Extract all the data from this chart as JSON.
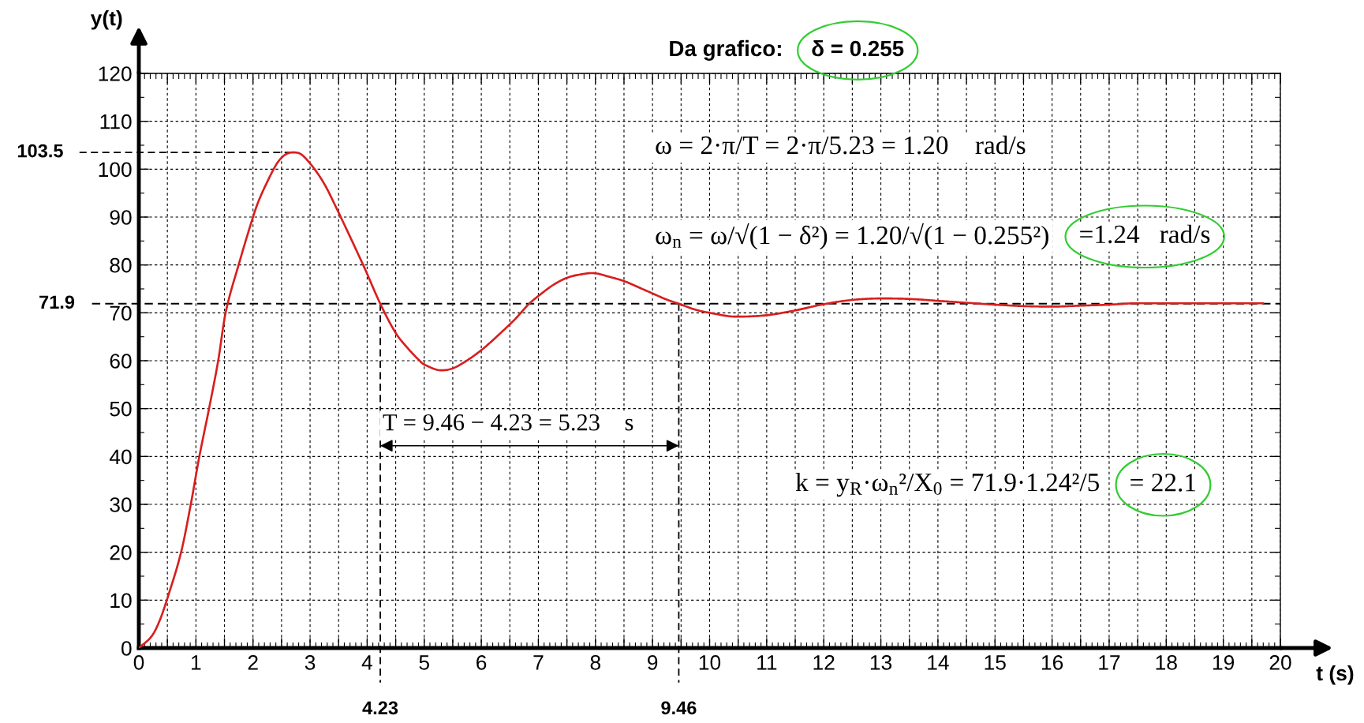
{
  "chart_data": {
    "type": "line",
    "xlabel": "t (s)",
    "ylabel": "y(t)",
    "x": [
      0,
      0.22,
      0.35,
      0.49,
      0.74,
      0.91,
      1.06,
      1.23,
      1.39,
      1.52,
      1.77,
      2.0,
      2.1,
      2.26,
      2.42,
      2.56,
      2.7,
      2.83,
      3.0,
      3.2,
      3.36,
      3.93,
      4.23,
      4.5,
      4.72,
      4.91,
      5.0,
      5.3,
      5.5,
      5.73,
      6.0,
      6.24,
      6.5,
      6.61,
      6.83,
      7.02,
      7.27,
      7.52,
      7.78,
      7.94,
      8.28,
      8.53,
      8.78,
      9.01,
      9.24,
      9.46,
      9.74,
      10.0,
      10.47,
      11.0,
      11.5,
      12.0,
      12.5,
      13.0,
      13.5,
      14.0,
      14.5,
      15.0,
      15.5,
      16.0,
      16.5,
      17.0,
      17.5,
      18.0,
      19.0,
      19.7
    ],
    "values": [
      0,
      2.4,
      5.3,
      10,
      20,
      30,
      40,
      50,
      60,
      70,
      80.9,
      90,
      93.4,
      97.6,
      101.2,
      103.0,
      103.5,
      103.2,
      101.2,
      97.9,
      94.4,
      80,
      71.9,
      65.8,
      62.5,
      60.1,
      59.2,
      58.0,
      58.4,
      59.9,
      62.2,
      64.7,
      67.6,
      68.9,
      71.8,
      73.7,
      75.9,
      77.4,
      78.1,
      78.3,
      77.4,
      76.5,
      75.2,
      74.0,
      72.8,
      71.9,
      70.7,
      70.0,
      69.2,
      69.5,
      70.5,
      71.8,
      72.7,
      73.0,
      72.9,
      72.5,
      72.1,
      71.7,
      71.4,
      71.3,
      71.5,
      71.7,
      72.0,
      72.0,
      72.0,
      72.0
    ],
    "color": "#d81e1e",
    "xlim": [
      0,
      20
    ],
    "ylim": [
      0,
      120
    ],
    "xticks": [
      0,
      {
        "value": 0.5,
        "label": null
      },
      1,
      {
        "value": 1.5,
        "label": null
      },
      2,
      {
        "value": 2.5,
        "label": null
      },
      3,
      {
        "value": 3.5,
        "label": null
      },
      4,
      {
        "value": 4.5,
        "label": null
      },
      5,
      {
        "value": 5.5,
        "label": null
      },
      6,
      {
        "value": 6.5,
        "label": null
      },
      7,
      {
        "value": 7.5,
        "label": null
      },
      8,
      {
        "value": 8.5,
        "label": null
      },
      9,
      {
        "value": 9.5,
        "label": null
      },
      10,
      {
        "value": 10.5,
        "label": null
      },
      11,
      {
        "value": 11.5,
        "label": null
      },
      12,
      {
        "value": 12.5,
        "label": null
      },
      13,
      {
        "value": 13.5,
        "label": null
      },
      14,
      {
        "value": 14.5,
        "label": null
      },
      15,
      {
        "value": 15.5,
        "label": null
      },
      16,
      {
        "value": 16.5,
        "label": null
      },
      17,
      {
        "value": 17.5,
        "label": null
      },
      18,
      {
        "value": 18.5,
        "label": null
      },
      19,
      {
        "value": 19.5,
        "label": null
      },
      20
    ],
    "yticks": [
      0,
      10,
      20,
      30,
      40,
      50,
      60,
      70,
      80,
      90,
      100,
      110,
      120
    ],
    "grid": true,
    "ref_lines": [
      {
        "axis": "y",
        "value": 71.9,
        "label": "71.9",
        "line_style": "dashed",
        "color": "#000000"
      }
    ],
    "annotations": [
      "Da grafico:",
      "δ = 0.255",
      "ω = 2·π/T = 2·π/5.23 = 1.20    rad/s",
      "ω$_{n}$ = ω/√(1 − δ²) = 1.20/√(1 − 0.255²)",
      "=1.24   rad/s",
      "T = 9.46 − 4.23 = 5.23    s",
      "k = y$_{R}$·ω$_{n}$²/X$_{0}$ = 71.9·1.24²/5",
      "= 22.1",
      {
        "text": "103.5",
        "x": 2.7,
        "y": 103.5
      },
      {
        "text": "4.23",
        "x": 4.23,
        "y": 71.9
      },
      {
        "text": "9.46",
        "x": 9.46,
        "y": 71.9
      }
    ]
  }
}
